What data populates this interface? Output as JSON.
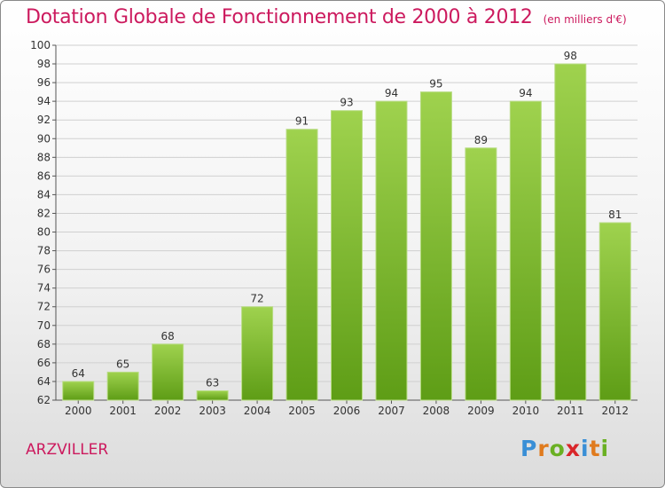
{
  "title": "Dotation Globale de Fonctionnement de 2000 à 2012",
  "unit": "(en milliers d'€)",
  "commune": "ARZVILLER",
  "logo": {
    "letters": [
      "P",
      "r",
      "o",
      "x",
      "i",
      "t",
      "i"
    ],
    "colors": [
      "#3a8fd6",
      "#e07b1e",
      "#6ab023",
      "#d9262a",
      "#3a8fd6",
      "#e07b1e",
      "#6ab023"
    ]
  },
  "chart_data": {
    "type": "bar",
    "title": "Dotation Globale de Fonctionnement de 2000 à 2012",
    "categories": [
      "2000",
      "2001",
      "2002",
      "2003",
      "2004",
      "2005",
      "2006",
      "2007",
      "2008",
      "2009",
      "2010",
      "2011",
      "2012"
    ],
    "values": [
      64,
      65,
      68,
      63,
      72,
      91,
      93,
      94,
      95,
      89,
      94,
      98,
      81
    ],
    "ylim": [
      62,
      100
    ],
    "yticks": [
      62,
      64,
      66,
      68,
      70,
      72,
      74,
      76,
      78,
      80,
      82,
      84,
      86,
      88,
      90,
      92,
      94,
      96,
      98,
      100
    ],
    "grid": true,
    "bar_color": "#8cc63f"
  }
}
